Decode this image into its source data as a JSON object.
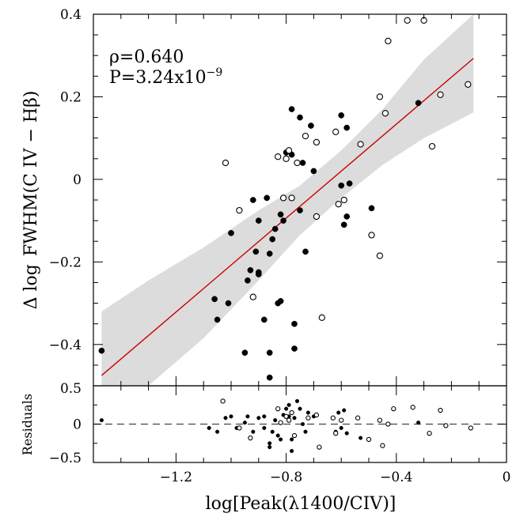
{
  "chart_data": [
    {
      "type": "scatter",
      "panel": "main",
      "ylabel_prefix": "Δ log",
      "ylabel": "FWHM(C IV − Hβ)",
      "xlabel": "log[Peak(λ1400/CIV)]",
      "xlim": [
        -1.5,
        0.0
      ],
      "ylim": [
        -0.5,
        0.4
      ],
      "xticks": [
        -1.2,
        -0.8,
        -0.4,
        0
      ],
      "xtick_labels": [
        "−1.2",
        "−0.8",
        "−0.4",
        "0"
      ],
      "yticks": [
        0.4,
        0.2,
        0,
        -0.2,
        -0.4
      ],
      "ytick_labels": [
        "0.4",
        "0.2",
        "0",
        "−0.2",
        "−0.4"
      ],
      "annotations": {
        "rho_text": "ρ=0.640",
        "p_text": "P=3.24x10",
        "p_exponent": "−9"
      },
      "fit_line": {
        "x": [
          -1.47,
          -0.12
        ],
        "y": [
          -0.475,
          0.293
        ],
        "color": "#cc0000"
      },
      "confidence_band": {
        "color": "#dcdcdc",
        "x": [
          -1.47,
          -1.3,
          -1.1,
          -0.9,
          -0.75,
          -0.6,
          -0.45,
          -0.3,
          -0.12
        ],
        "upper": [
          -0.32,
          -0.245,
          -0.165,
          -0.075,
          -0.015,
          0.07,
          0.17,
          0.29,
          0.4
        ],
        "lower": [
          -0.5,
          -0.5,
          -0.385,
          -0.245,
          -0.135,
          -0.045,
          0.035,
          0.1,
          0.162
        ]
      },
      "series": [
        {
          "marker": "filled",
          "points": [
            [
              -1.47,
              -0.415
            ],
            [
              -1.06,
              -0.29
            ],
            [
              -1.05,
              -0.34
            ],
            [
              -1.01,
              -0.3
            ],
            [
              -1.0,
              -0.13
            ],
            [
              -0.95,
              -0.42
            ],
            [
              -0.94,
              -0.245
            ],
            [
              -0.93,
              -0.22
            ],
            [
              -0.92,
              -0.05
            ],
            [
              -0.91,
              -0.175
            ],
            [
              -0.9,
              -0.225
            ],
            [
              -0.9,
              -0.23
            ],
            [
              -0.9,
              -0.1
            ],
            [
              -0.88,
              -0.34
            ],
            [
              -0.87,
              -0.045
            ],
            [
              -0.86,
              -0.48
            ],
            [
              -0.86,
              -0.42
            ],
            [
              -0.86,
              -0.18
            ],
            [
              -0.85,
              -0.145
            ],
            [
              -0.84,
              -0.12
            ],
            [
              -0.83,
              -0.3
            ],
            [
              -0.82,
              -0.295
            ],
            [
              -0.82,
              -0.085
            ],
            [
              -0.81,
              -0.1
            ],
            [
              -0.8,
              0.065
            ],
            [
              -0.78,
              0.06
            ],
            [
              -0.78,
              0.17
            ],
            [
              -0.77,
              -0.41
            ],
            [
              -0.77,
              -0.35
            ],
            [
              -0.75,
              0.15
            ],
            [
              -0.75,
              -0.075
            ],
            [
              -0.74,
              0.04
            ],
            [
              -0.73,
              -0.175
            ],
            [
              -0.71,
              0.13
            ],
            [
              -0.7,
              0.02
            ],
            [
              -0.6,
              0.155
            ],
            [
              -0.6,
              -0.015
            ],
            [
              -0.59,
              -0.11
            ],
            [
              -0.58,
              0.125
            ],
            [
              -0.58,
              -0.09
            ],
            [
              -0.57,
              -0.01
            ],
            [
              -0.49,
              -0.07
            ],
            [
              -0.32,
              0.185
            ]
          ]
        },
        {
          "marker": "open",
          "points": [
            [
              -1.02,
              0.04
            ],
            [
              -0.97,
              -0.075
            ],
            [
              -0.92,
              -0.285
            ],
            [
              -0.83,
              0.055
            ],
            [
              -0.81,
              -0.045
            ],
            [
              -0.8,
              0.05
            ],
            [
              -0.79,
              0.07
            ],
            [
              -0.78,
              -0.045
            ],
            [
              -0.76,
              0.04
            ],
            [
              -0.73,
              0.105
            ],
            [
              -0.69,
              0.09
            ],
            [
              -0.69,
              -0.09
            ],
            [
              -0.67,
              -0.335
            ],
            [
              -0.62,
              0.115
            ],
            [
              -0.61,
              -0.06
            ],
            [
              -0.59,
              -0.05
            ],
            [
              -0.53,
              0.085
            ],
            [
              -0.49,
              -0.135
            ],
            [
              -0.46,
              0.2
            ],
            [
              -0.46,
              -0.185
            ],
            [
              -0.44,
              0.16
            ],
            [
              -0.43,
              0.335
            ],
            [
              -0.36,
              0.385
            ],
            [
              -0.3,
              0.385
            ],
            [
              -0.27,
              0.08
            ],
            [
              -0.24,
              0.205
            ],
            [
              -0.14,
              0.23
            ]
          ]
        }
      ]
    },
    {
      "type": "scatter",
      "panel": "residuals",
      "ylabel": "Residuals",
      "xlim": [
        -1.5,
        0.0
      ],
      "ylim": [
        -0.5,
        0.5
      ],
      "yticks": [
        0.5,
        0,
        -0.5
      ],
      "ytick_labels": [
        "0.5",
        "0",
        "−0.5"
      ],
      "zero_line": true,
      "series": [
        {
          "marker": "filled",
          "points": [
            [
              -1.47,
              0.05
            ],
            [
              -1.08,
              -0.05
            ],
            [
              -1.05,
              -0.1
            ],
            [
              -1.02,
              0.08
            ],
            [
              -1.0,
              0.1
            ],
            [
              -0.98,
              -0.05
            ],
            [
              -0.95,
              0.02
            ],
            [
              -0.94,
              0.1
            ],
            [
              -0.92,
              -0.1
            ],
            [
              -0.9,
              0.08
            ],
            [
              -0.88,
              -0.05
            ],
            [
              -0.88,
              0.1
            ],
            [
              -0.86,
              -0.3
            ],
            [
              -0.86,
              -0.25
            ],
            [
              -0.85,
              -0.1
            ],
            [
              -0.84,
              0.05
            ],
            [
              -0.83,
              -0.15
            ],
            [
              -0.82,
              -0.2
            ],
            [
              -0.81,
              0.12
            ],
            [
              -0.8,
              0.2
            ],
            [
              -0.79,
              0.25
            ],
            [
              -0.79,
              0.1
            ],
            [
              -0.78,
              -0.35
            ],
            [
              -0.78,
              -0.2
            ],
            [
              -0.77,
              0.08
            ],
            [
              -0.76,
              0.3
            ],
            [
              -0.75,
              0.2
            ],
            [
              -0.74,
              0.0
            ],
            [
              -0.73,
              -0.1
            ],
            [
              -0.72,
              0.15
            ],
            [
              -0.7,
              0.1
            ],
            [
              -0.62,
              -0.1
            ],
            [
              -0.61,
              0.15
            ],
            [
              -0.6,
              0.05
            ],
            [
              -0.6,
              -0.05
            ],
            [
              -0.59,
              0.18
            ],
            [
              -0.58,
              -0.12
            ],
            [
              -0.53,
              -0.18
            ],
            [
              -0.32,
              0.02
            ]
          ]
        },
        {
          "marker": "open",
          "points": [
            [
              -1.03,
              0.3
            ],
            [
              -0.97,
              -0.05
            ],
            [
              -0.93,
              -0.18
            ],
            [
              -0.83,
              0.2
            ],
            [
              -0.82,
              0.02
            ],
            [
              -0.8,
              0.1
            ],
            [
              -0.79,
              0.05
            ],
            [
              -0.78,
              0.15
            ],
            [
              -0.77,
              -0.15
            ],
            [
              -0.72,
              0.08
            ],
            [
              -0.69,
              0.12
            ],
            [
              -0.68,
              -0.3
            ],
            [
              -0.63,
              0.08
            ],
            [
              -0.62,
              -0.12
            ],
            [
              -0.6,
              0.05
            ],
            [
              -0.54,
              0.08
            ],
            [
              -0.5,
              -0.2
            ],
            [
              -0.46,
              0.05
            ],
            [
              -0.45,
              -0.28
            ],
            [
              -0.43,
              0.0
            ],
            [
              -0.41,
              0.2
            ],
            [
              -0.34,
              0.22
            ],
            [
              -0.28,
              -0.12
            ],
            [
              -0.24,
              0.18
            ],
            [
              -0.22,
              -0.02
            ],
            [
              -0.13,
              -0.05
            ]
          ]
        }
      ]
    }
  ]
}
